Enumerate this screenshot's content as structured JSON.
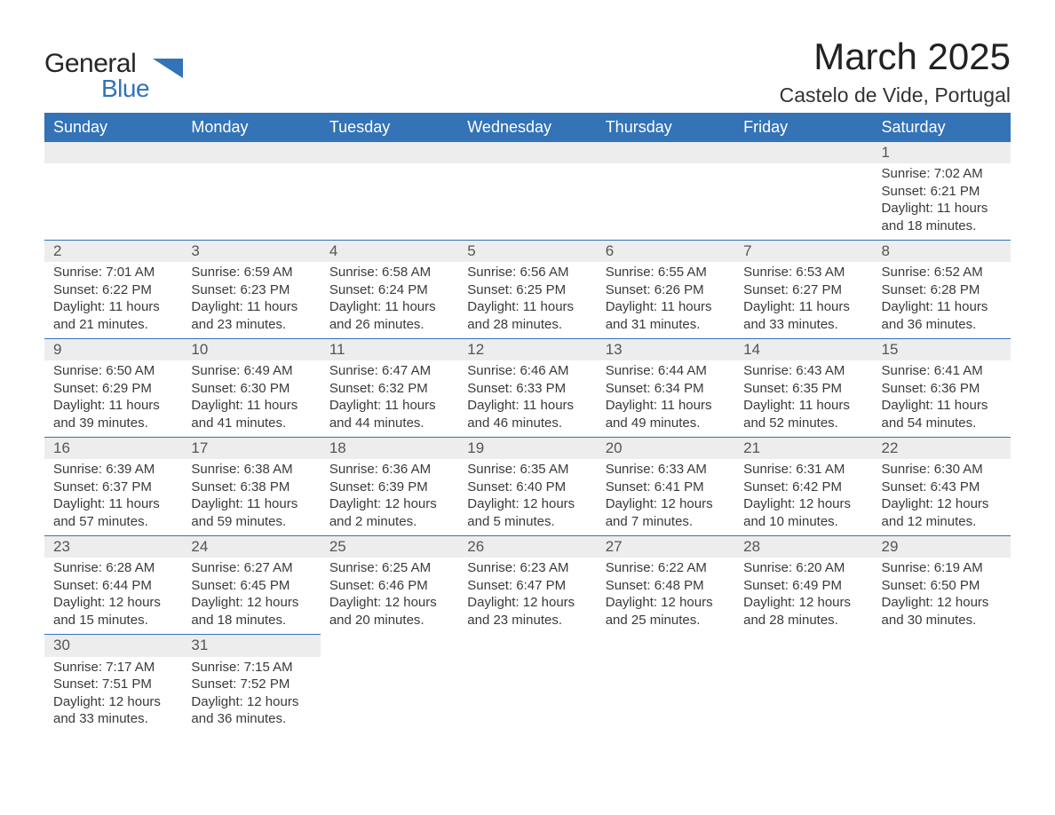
{
  "brand": {
    "line1": "General",
    "line2": "Blue"
  },
  "title": "March 2025",
  "location": "Castelo de Vide, Portugal",
  "colors": {
    "header_bg": "#3373b6",
    "header_fg": "#ffffff",
    "daynum_bg": "#ededed",
    "row_divider": "#3373b6",
    "text": "#3a3a3a",
    "page_bg": "#ffffff"
  },
  "typography": {
    "title_fontsize_pt": 32,
    "location_fontsize_pt": 17,
    "weekday_fontsize_pt": 14,
    "body_fontsize_pt": 11
  },
  "layout": {
    "columns": 7,
    "rows": 6,
    "start_weekday": "Sunday"
  },
  "weekdays": [
    "Sunday",
    "Monday",
    "Tuesday",
    "Wednesday",
    "Thursday",
    "Friday",
    "Saturday"
  ],
  "weeks": [
    [
      null,
      null,
      null,
      null,
      null,
      null,
      {
        "day": "1",
        "sunrise": "Sunrise: 7:02 AM",
        "sunset": "Sunset: 6:21 PM",
        "daylight1": "Daylight: 11 hours",
        "daylight2": "and 18 minutes."
      }
    ],
    [
      {
        "day": "2",
        "sunrise": "Sunrise: 7:01 AM",
        "sunset": "Sunset: 6:22 PM",
        "daylight1": "Daylight: 11 hours",
        "daylight2": "and 21 minutes."
      },
      {
        "day": "3",
        "sunrise": "Sunrise: 6:59 AM",
        "sunset": "Sunset: 6:23 PM",
        "daylight1": "Daylight: 11 hours",
        "daylight2": "and 23 minutes."
      },
      {
        "day": "4",
        "sunrise": "Sunrise: 6:58 AM",
        "sunset": "Sunset: 6:24 PM",
        "daylight1": "Daylight: 11 hours",
        "daylight2": "and 26 minutes."
      },
      {
        "day": "5",
        "sunrise": "Sunrise: 6:56 AM",
        "sunset": "Sunset: 6:25 PM",
        "daylight1": "Daylight: 11 hours",
        "daylight2": "and 28 minutes."
      },
      {
        "day": "6",
        "sunrise": "Sunrise: 6:55 AM",
        "sunset": "Sunset: 6:26 PM",
        "daylight1": "Daylight: 11 hours",
        "daylight2": "and 31 minutes."
      },
      {
        "day": "7",
        "sunrise": "Sunrise: 6:53 AM",
        "sunset": "Sunset: 6:27 PM",
        "daylight1": "Daylight: 11 hours",
        "daylight2": "and 33 minutes."
      },
      {
        "day": "8",
        "sunrise": "Sunrise: 6:52 AM",
        "sunset": "Sunset: 6:28 PM",
        "daylight1": "Daylight: 11 hours",
        "daylight2": "and 36 minutes."
      }
    ],
    [
      {
        "day": "9",
        "sunrise": "Sunrise: 6:50 AM",
        "sunset": "Sunset: 6:29 PM",
        "daylight1": "Daylight: 11 hours",
        "daylight2": "and 39 minutes."
      },
      {
        "day": "10",
        "sunrise": "Sunrise: 6:49 AM",
        "sunset": "Sunset: 6:30 PM",
        "daylight1": "Daylight: 11 hours",
        "daylight2": "and 41 minutes."
      },
      {
        "day": "11",
        "sunrise": "Sunrise: 6:47 AM",
        "sunset": "Sunset: 6:32 PM",
        "daylight1": "Daylight: 11 hours",
        "daylight2": "and 44 minutes."
      },
      {
        "day": "12",
        "sunrise": "Sunrise: 6:46 AM",
        "sunset": "Sunset: 6:33 PM",
        "daylight1": "Daylight: 11 hours",
        "daylight2": "and 46 minutes."
      },
      {
        "day": "13",
        "sunrise": "Sunrise: 6:44 AM",
        "sunset": "Sunset: 6:34 PM",
        "daylight1": "Daylight: 11 hours",
        "daylight2": "and 49 minutes."
      },
      {
        "day": "14",
        "sunrise": "Sunrise: 6:43 AM",
        "sunset": "Sunset: 6:35 PM",
        "daylight1": "Daylight: 11 hours",
        "daylight2": "and 52 minutes."
      },
      {
        "day": "15",
        "sunrise": "Sunrise: 6:41 AM",
        "sunset": "Sunset: 6:36 PM",
        "daylight1": "Daylight: 11 hours",
        "daylight2": "and 54 minutes."
      }
    ],
    [
      {
        "day": "16",
        "sunrise": "Sunrise: 6:39 AM",
        "sunset": "Sunset: 6:37 PM",
        "daylight1": "Daylight: 11 hours",
        "daylight2": "and 57 minutes."
      },
      {
        "day": "17",
        "sunrise": "Sunrise: 6:38 AM",
        "sunset": "Sunset: 6:38 PM",
        "daylight1": "Daylight: 11 hours",
        "daylight2": "and 59 minutes."
      },
      {
        "day": "18",
        "sunrise": "Sunrise: 6:36 AM",
        "sunset": "Sunset: 6:39 PM",
        "daylight1": "Daylight: 12 hours",
        "daylight2": "and 2 minutes."
      },
      {
        "day": "19",
        "sunrise": "Sunrise: 6:35 AM",
        "sunset": "Sunset: 6:40 PM",
        "daylight1": "Daylight: 12 hours",
        "daylight2": "and 5 minutes."
      },
      {
        "day": "20",
        "sunrise": "Sunrise: 6:33 AM",
        "sunset": "Sunset: 6:41 PM",
        "daylight1": "Daylight: 12 hours",
        "daylight2": "and 7 minutes."
      },
      {
        "day": "21",
        "sunrise": "Sunrise: 6:31 AM",
        "sunset": "Sunset: 6:42 PM",
        "daylight1": "Daylight: 12 hours",
        "daylight2": "and 10 minutes."
      },
      {
        "day": "22",
        "sunrise": "Sunrise: 6:30 AM",
        "sunset": "Sunset: 6:43 PM",
        "daylight1": "Daylight: 12 hours",
        "daylight2": "and 12 minutes."
      }
    ],
    [
      {
        "day": "23",
        "sunrise": "Sunrise: 6:28 AM",
        "sunset": "Sunset: 6:44 PM",
        "daylight1": "Daylight: 12 hours",
        "daylight2": "and 15 minutes."
      },
      {
        "day": "24",
        "sunrise": "Sunrise: 6:27 AM",
        "sunset": "Sunset: 6:45 PM",
        "daylight1": "Daylight: 12 hours",
        "daylight2": "and 18 minutes."
      },
      {
        "day": "25",
        "sunrise": "Sunrise: 6:25 AM",
        "sunset": "Sunset: 6:46 PM",
        "daylight1": "Daylight: 12 hours",
        "daylight2": "and 20 minutes."
      },
      {
        "day": "26",
        "sunrise": "Sunrise: 6:23 AM",
        "sunset": "Sunset: 6:47 PM",
        "daylight1": "Daylight: 12 hours",
        "daylight2": "and 23 minutes."
      },
      {
        "day": "27",
        "sunrise": "Sunrise: 6:22 AM",
        "sunset": "Sunset: 6:48 PM",
        "daylight1": "Daylight: 12 hours",
        "daylight2": "and 25 minutes."
      },
      {
        "day": "28",
        "sunrise": "Sunrise: 6:20 AM",
        "sunset": "Sunset: 6:49 PM",
        "daylight1": "Daylight: 12 hours",
        "daylight2": "and 28 minutes."
      },
      {
        "day": "29",
        "sunrise": "Sunrise: 6:19 AM",
        "sunset": "Sunset: 6:50 PM",
        "daylight1": "Daylight: 12 hours",
        "daylight2": "and 30 minutes."
      }
    ],
    [
      {
        "day": "30",
        "sunrise": "Sunrise: 7:17 AM",
        "sunset": "Sunset: 7:51 PM",
        "daylight1": "Daylight: 12 hours",
        "daylight2": "and 33 minutes."
      },
      {
        "day": "31",
        "sunrise": "Sunrise: 7:15 AM",
        "sunset": "Sunset: 7:52 PM",
        "daylight1": "Daylight: 12 hours",
        "daylight2": "and 36 minutes."
      },
      null,
      null,
      null,
      null,
      null
    ]
  ]
}
